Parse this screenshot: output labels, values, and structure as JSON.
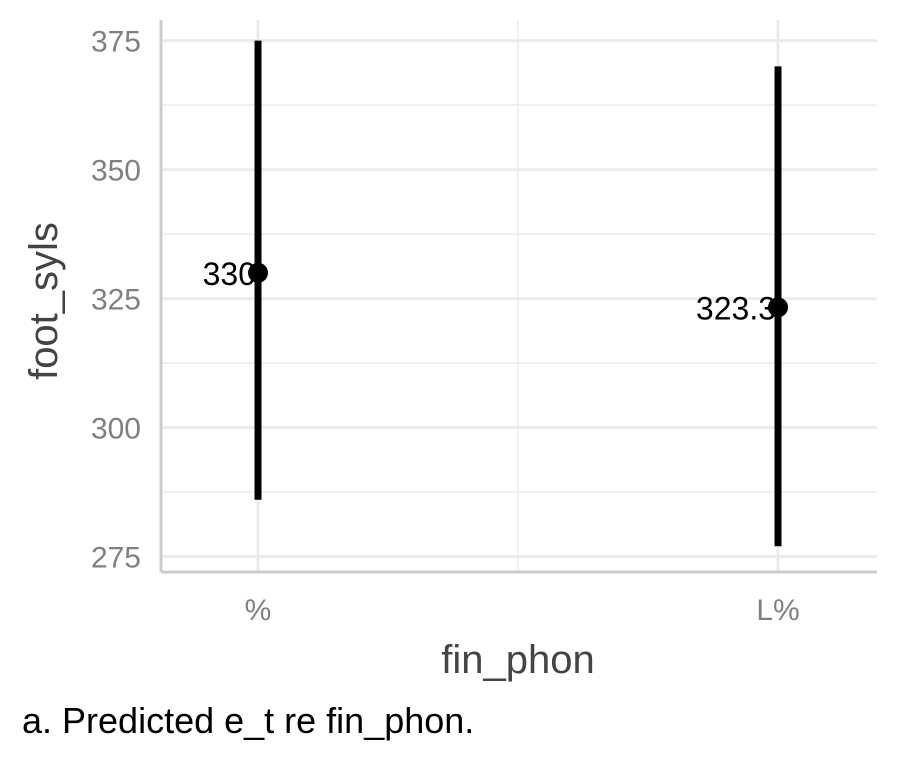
{
  "chart_data": {
    "type": "scatter",
    "categories": [
      "%",
      "L%"
    ],
    "points": [
      {
        "category": "%",
        "estimate": 330,
        "lower": 286,
        "upper": 375,
        "label": "330"
      },
      {
        "category": "L%",
        "estimate": 323.3,
        "lower": 277,
        "upper": 370,
        "label": "323.3"
      }
    ],
    "xlabel": "fin_phon",
    "ylabel": "foot_syls",
    "ylim": [
      272,
      379
    ],
    "yticks": [
      275,
      300,
      325,
      350,
      375
    ],
    "grid": true
  },
  "caption": "a. Predicted e_t re fin_phon.",
  "colors": {
    "grid": "#ebebeb",
    "axis": "#cccccc",
    "mark": "#000000",
    "tick_text": "#808080",
    "title_text": "#444444"
  }
}
